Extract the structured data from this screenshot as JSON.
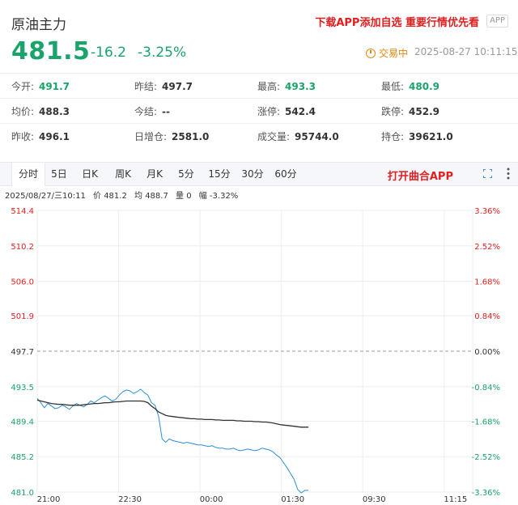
{
  "header": {
    "title": "原油主力",
    "promo": "下载APP添加自选 重要行情优先看",
    "app_badge": "APP",
    "price": "481.5",
    "change": "-16.2",
    "change_pct": "-3.25%",
    "status": "交易中",
    "timestamp": "2025-08-27 10:11:15",
    "colors": {
      "down": "#1aa36a",
      "up": "#e02020",
      "status": "#e6860d"
    }
  },
  "stats": [
    [
      {
        "label": "今开:",
        "value": "491.7",
        "color": "green"
      },
      {
        "label": "昨结:",
        "value": "497.7"
      },
      {
        "label": "最高:",
        "value": "493.3",
        "color": "green"
      },
      {
        "label": "最低:",
        "value": "480.9",
        "color": "green"
      }
    ],
    [
      {
        "label": "均价:",
        "value": "488.3"
      },
      {
        "label": "今结:",
        "value": "--"
      },
      {
        "label": "涨停:",
        "value": "542.4"
      },
      {
        "label": "跌停:",
        "value": "452.9"
      }
    ],
    [
      {
        "label": "昨收:",
        "value": "496.1"
      },
      {
        "label": "日增仓:",
        "value": "2581.0"
      },
      {
        "label": "成交量:",
        "value": "95744.0"
      },
      {
        "label": "持仓:",
        "value": "39621.0"
      }
    ]
  ],
  "tabs": [
    "分时",
    "5日",
    "日K",
    "周K",
    "月K",
    "5分",
    "15分",
    "30分",
    "60分"
  ],
  "active_tab": 0,
  "open_app": "打开曲合APP",
  "icons": {
    "expand": "expand-icon",
    "more": "more-vertical-icon",
    "clock": "clock-icon"
  },
  "info": {
    "date": "2025/08/27/三10:11",
    "price": "价 481.2",
    "avg": "均 488.7",
    "volume": "量 0",
    "amplitude": "幅 -3.32%"
  },
  "chart_data": {
    "type": "line",
    "title": "",
    "x_ticks": [
      "21:00",
      "22:30",
      "00:00",
      "01:30",
      "09:30",
      "11:15"
    ],
    "y_left_ticks": [
      514.4,
      510.2,
      506.0,
      501.9,
      497.7,
      493.5,
      489.4,
      485.2,
      481.0
    ],
    "y_right_ticks": [
      "3.36%",
      "2.52%",
      "1.68%",
      "0.84%",
      "0.00%",
      "-0.84%",
      "-1.68%",
      "-2.52%",
      "-3.36%"
    ],
    "ylim": [
      481.0,
      514.4
    ],
    "reference": 497.7,
    "colors": {
      "price": "#2c8fd6",
      "avg": "#333333",
      "up_axis": "#e02020",
      "down_axis": "#1aa36a",
      "ref": "#333333"
    },
    "series": [
      {
        "values": [
          492.1,
          491.6,
          491.0,
          491.5,
          491.2,
          490.9,
          491.0,
          491.3,
          491.1,
          490.8,
          491.2,
          491.5,
          491.3,
          491.1,
          491.4,
          491.8,
          491.6,
          491.9,
          492.2,
          492.4,
          492.1,
          491.8,
          492.0,
          492.5,
          492.9,
          493.1,
          493.0,
          492.7,
          492.9,
          493.2,
          492.8,
          492.5,
          491.6,
          491.3,
          490.0,
          487.3,
          486.9,
          487.3,
          487.1,
          487.0,
          486.9,
          486.8,
          486.9,
          486.8,
          486.7,
          486.6,
          486.6,
          486.5,
          486.4,
          486.5,
          486.3,
          486.2,
          486.2,
          486.1,
          486.1,
          486.2,
          486.0,
          485.9,
          486.0,
          486.1,
          486.0,
          485.9,
          486.0,
          486.2,
          486.1,
          486.0,
          485.8,
          485.4,
          485.1,
          484.5,
          483.9,
          483.2,
          482.5,
          481.3,
          480.9,
          481.2,
          481.2
        ]
      },
      {
        "values": [
          491.9,
          491.8,
          491.7,
          491.6,
          491.5,
          491.45,
          491.4,
          491.4,
          491.35,
          491.3,
          491.3,
          491.3,
          491.3,
          491.35,
          491.4,
          491.45,
          491.5,
          491.5,
          491.55,
          491.6,
          491.6,
          491.65,
          491.7,
          491.7,
          491.75,
          491.8,
          491.8,
          491.8,
          491.8,
          491.8,
          491.75,
          491.6,
          491.2,
          490.9,
          490.5,
          490.3,
          490.1,
          490.0,
          489.95,
          489.9,
          489.85,
          489.8,
          489.75,
          489.7,
          489.7,
          489.65,
          489.65,
          489.6,
          489.6,
          489.6,
          489.55,
          489.55,
          489.5,
          489.5,
          489.5,
          489.5,
          489.45,
          489.45,
          489.4,
          489.4,
          489.4,
          489.35,
          489.35,
          489.3,
          489.3,
          489.25,
          489.2,
          489.1,
          489.0,
          488.95,
          488.9,
          488.85,
          488.8,
          488.75,
          488.7,
          488.7,
          488.7
        ]
      }
    ]
  }
}
